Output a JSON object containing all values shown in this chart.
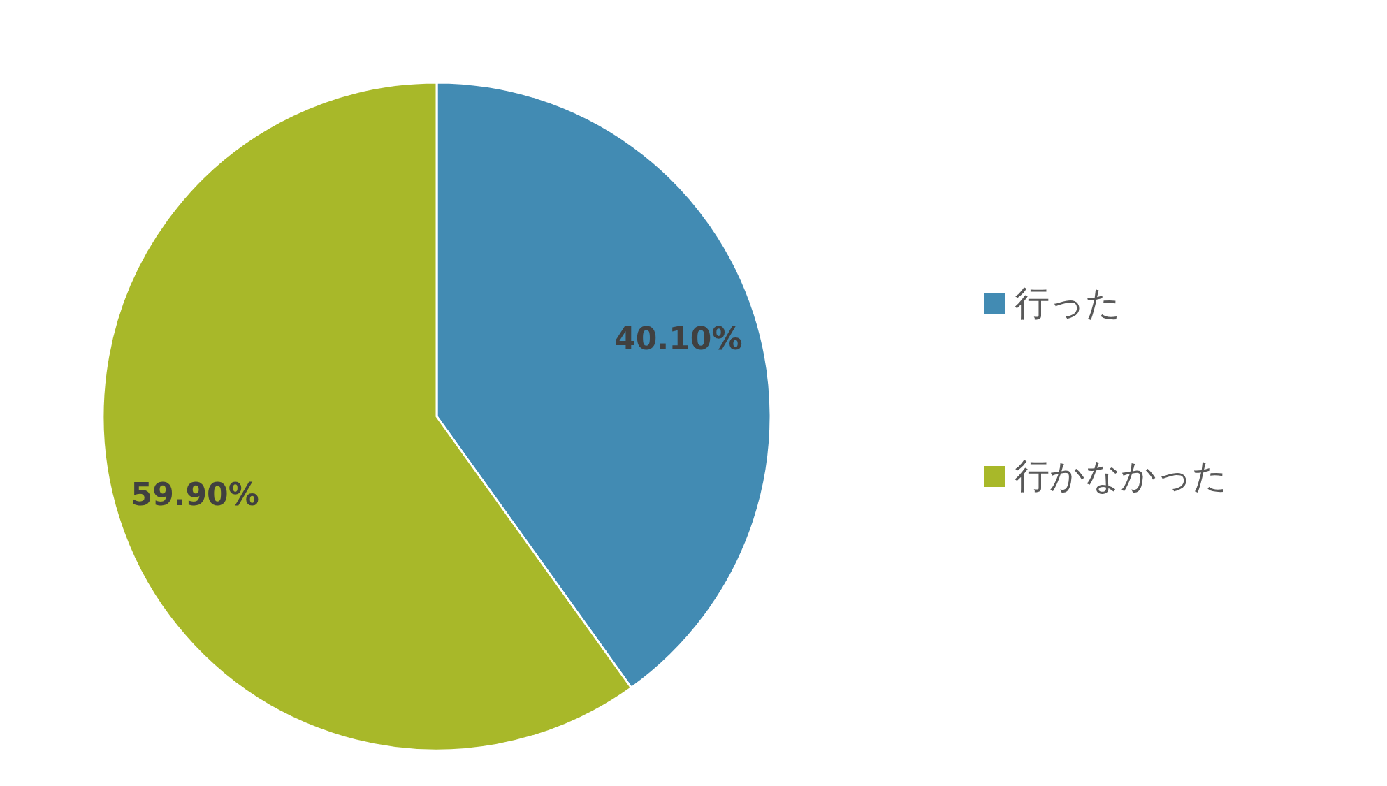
{
  "chart_data": {
    "type": "pie",
    "categories": [
      "行った",
      "行かなかった"
    ],
    "values": [
      40.1,
      59.9
    ],
    "colors": [
      "#428bb3",
      "#a8b829"
    ],
    "value_labels": [
      "40.10%",
      "59.90%"
    ],
    "legend": "right"
  }
}
